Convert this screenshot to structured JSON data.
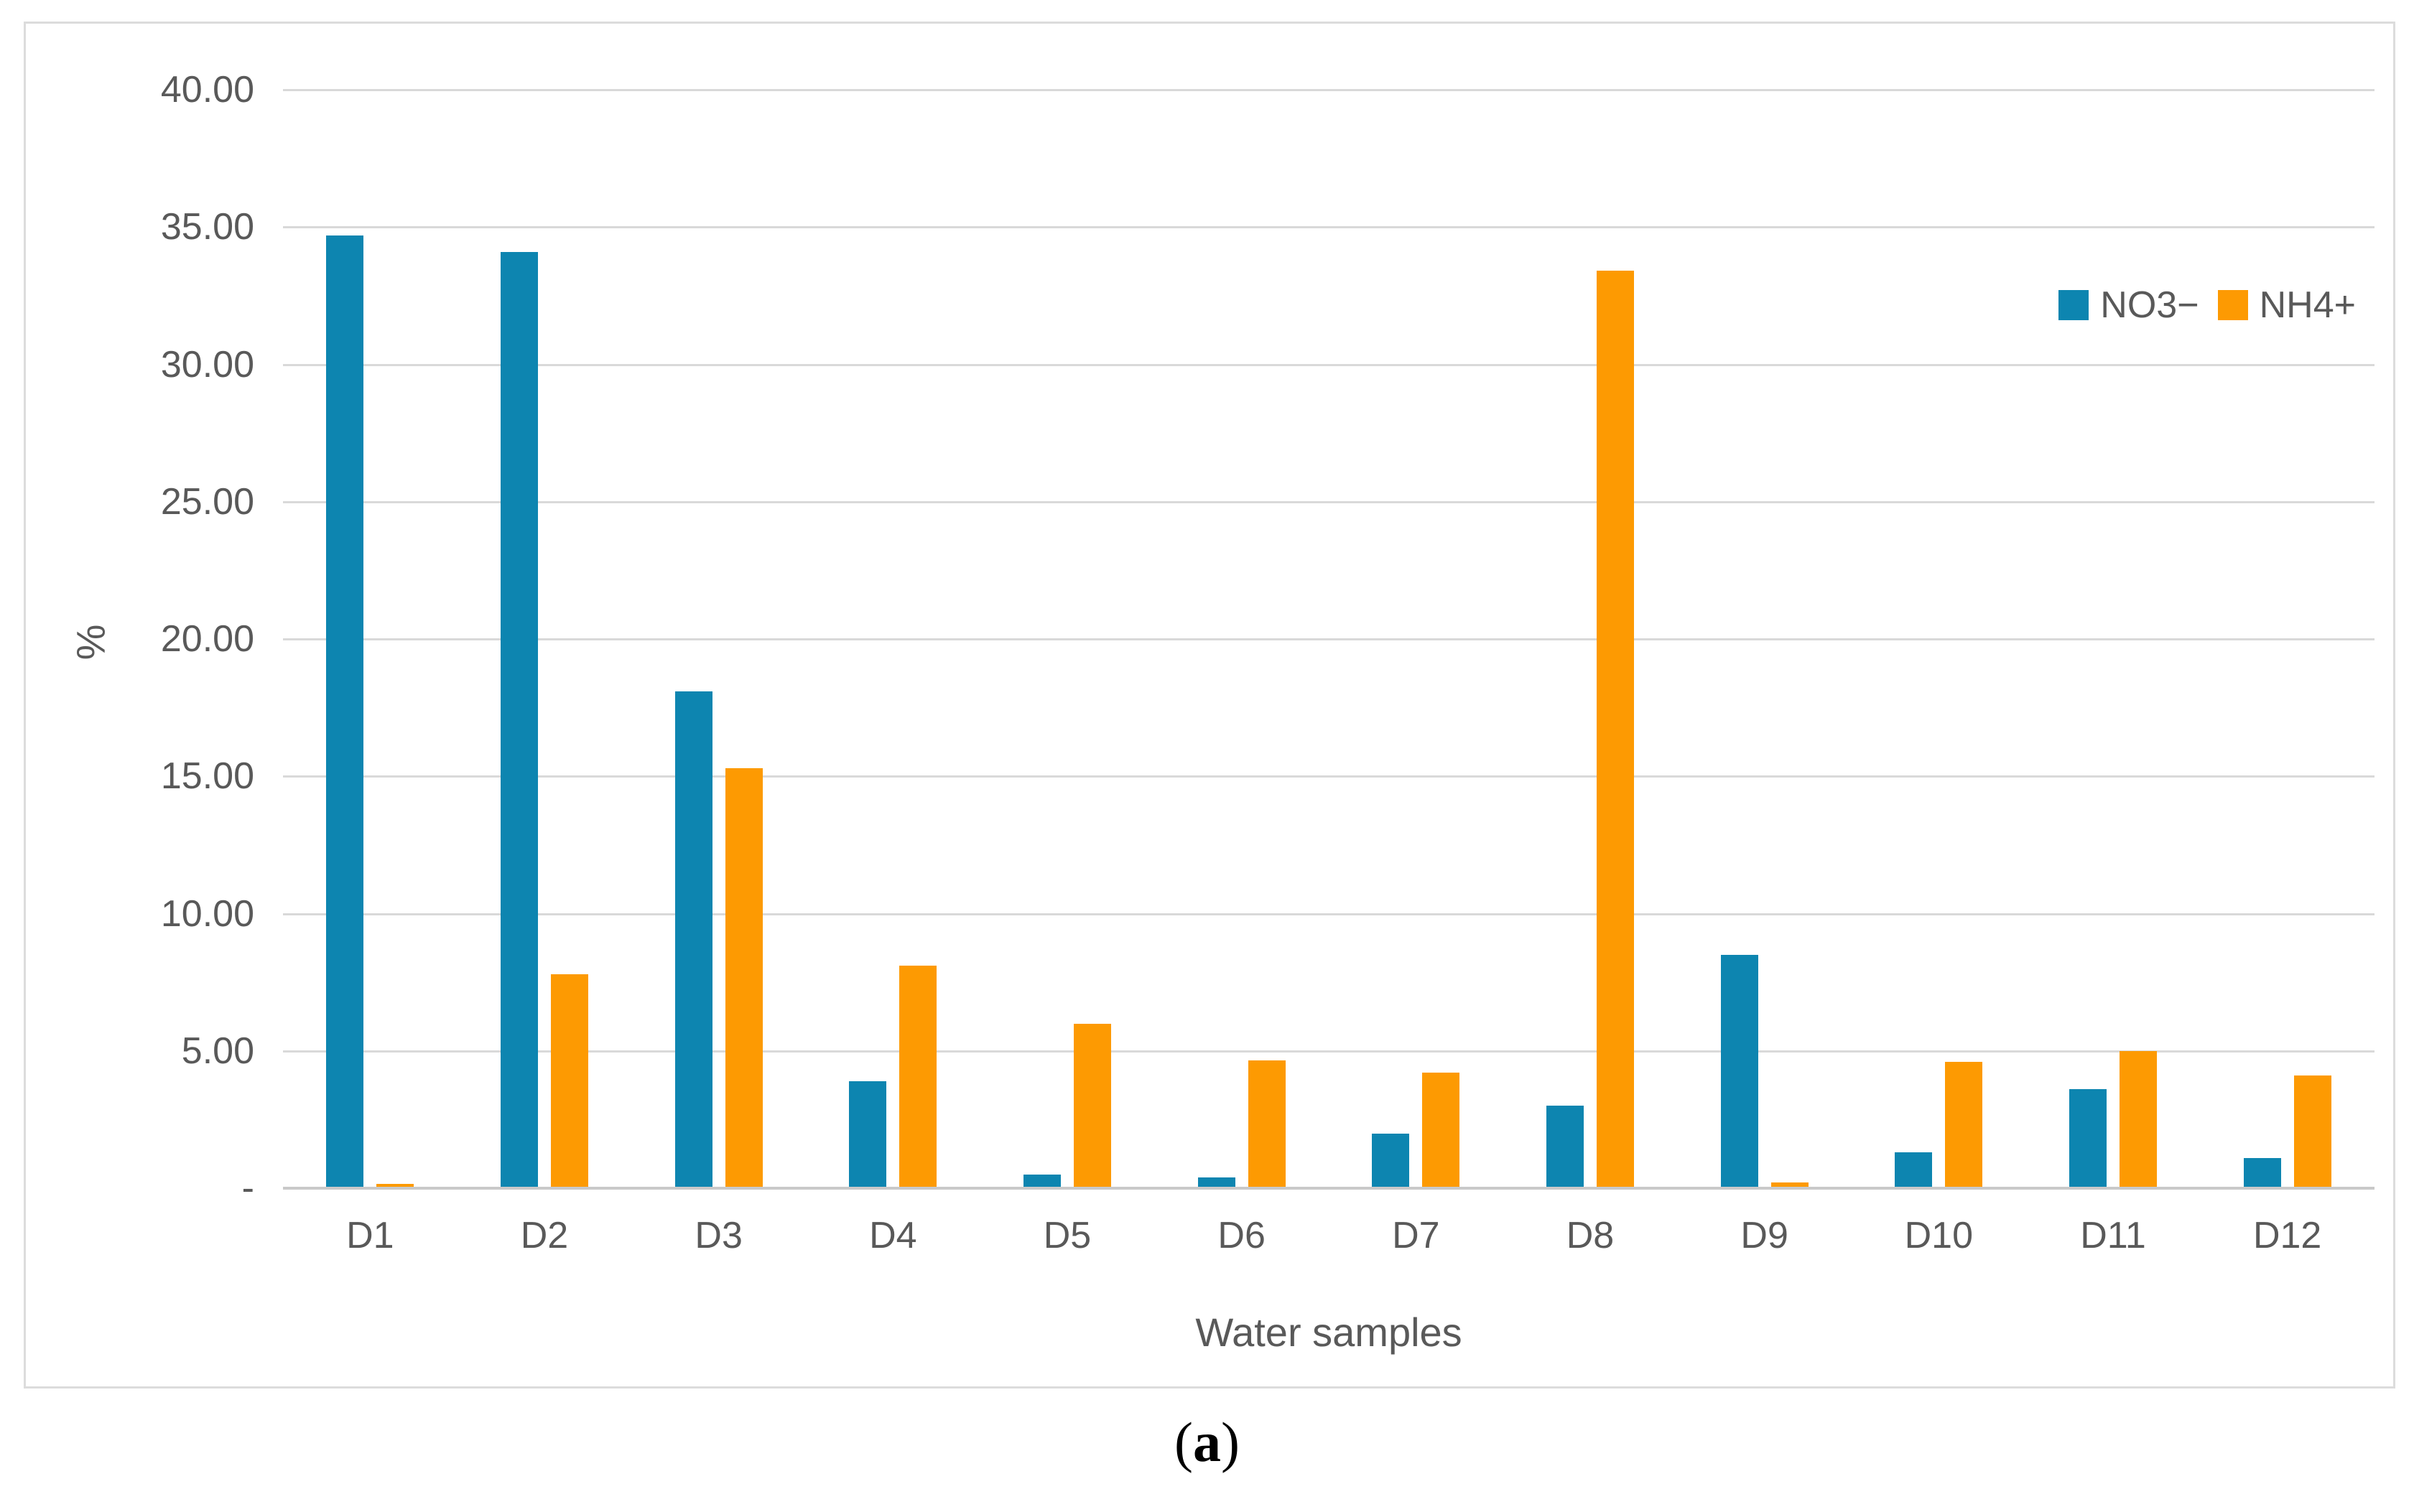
{
  "figure": {
    "caption_prefix": "(",
    "caption_letter": "a",
    "caption_suffix": ")"
  },
  "chart_data": {
    "type": "bar",
    "title": "",
    "xlabel": "Water samples",
    "ylabel": "%",
    "ylim": [
      0,
      40
    ],
    "ytick_step": 5,
    "ytick_labels": [
      "-",
      "5.00",
      "10.00",
      "15.00",
      "20.00",
      "25.00",
      "30.00",
      "35.00",
      "40.00"
    ],
    "zero_tick_label": "-",
    "grid": true,
    "legend_position": "top-right",
    "categories": [
      "D1",
      "D2",
      "D3",
      "D4",
      "D5",
      "D6",
      "D7",
      "D8",
      "D9",
      "D10",
      "D11",
      "D12"
    ],
    "series": [
      {
        "name": "NO3−",
        "color": "#0d85b0",
        "values": [
          34.7,
          34.1,
          18.1,
          3.9,
          0.5,
          0.4,
          2.0,
          3.0,
          8.5,
          1.3,
          3.6,
          1.1
        ]
      },
      {
        "name": "NH4+",
        "color": "#fd9a02",
        "values": [
          0.15,
          7.8,
          15.3,
          8.1,
          6.0,
          4.65,
          4.2,
          33.4,
          0.2,
          4.6,
          5.0,
          4.1
        ]
      }
    ],
    "colors": {
      "gridline": "#d9d9d9",
      "axis_line": "#c9c9c9",
      "tick_text": "#595959",
      "frame_border": "#dcdcdc"
    }
  }
}
